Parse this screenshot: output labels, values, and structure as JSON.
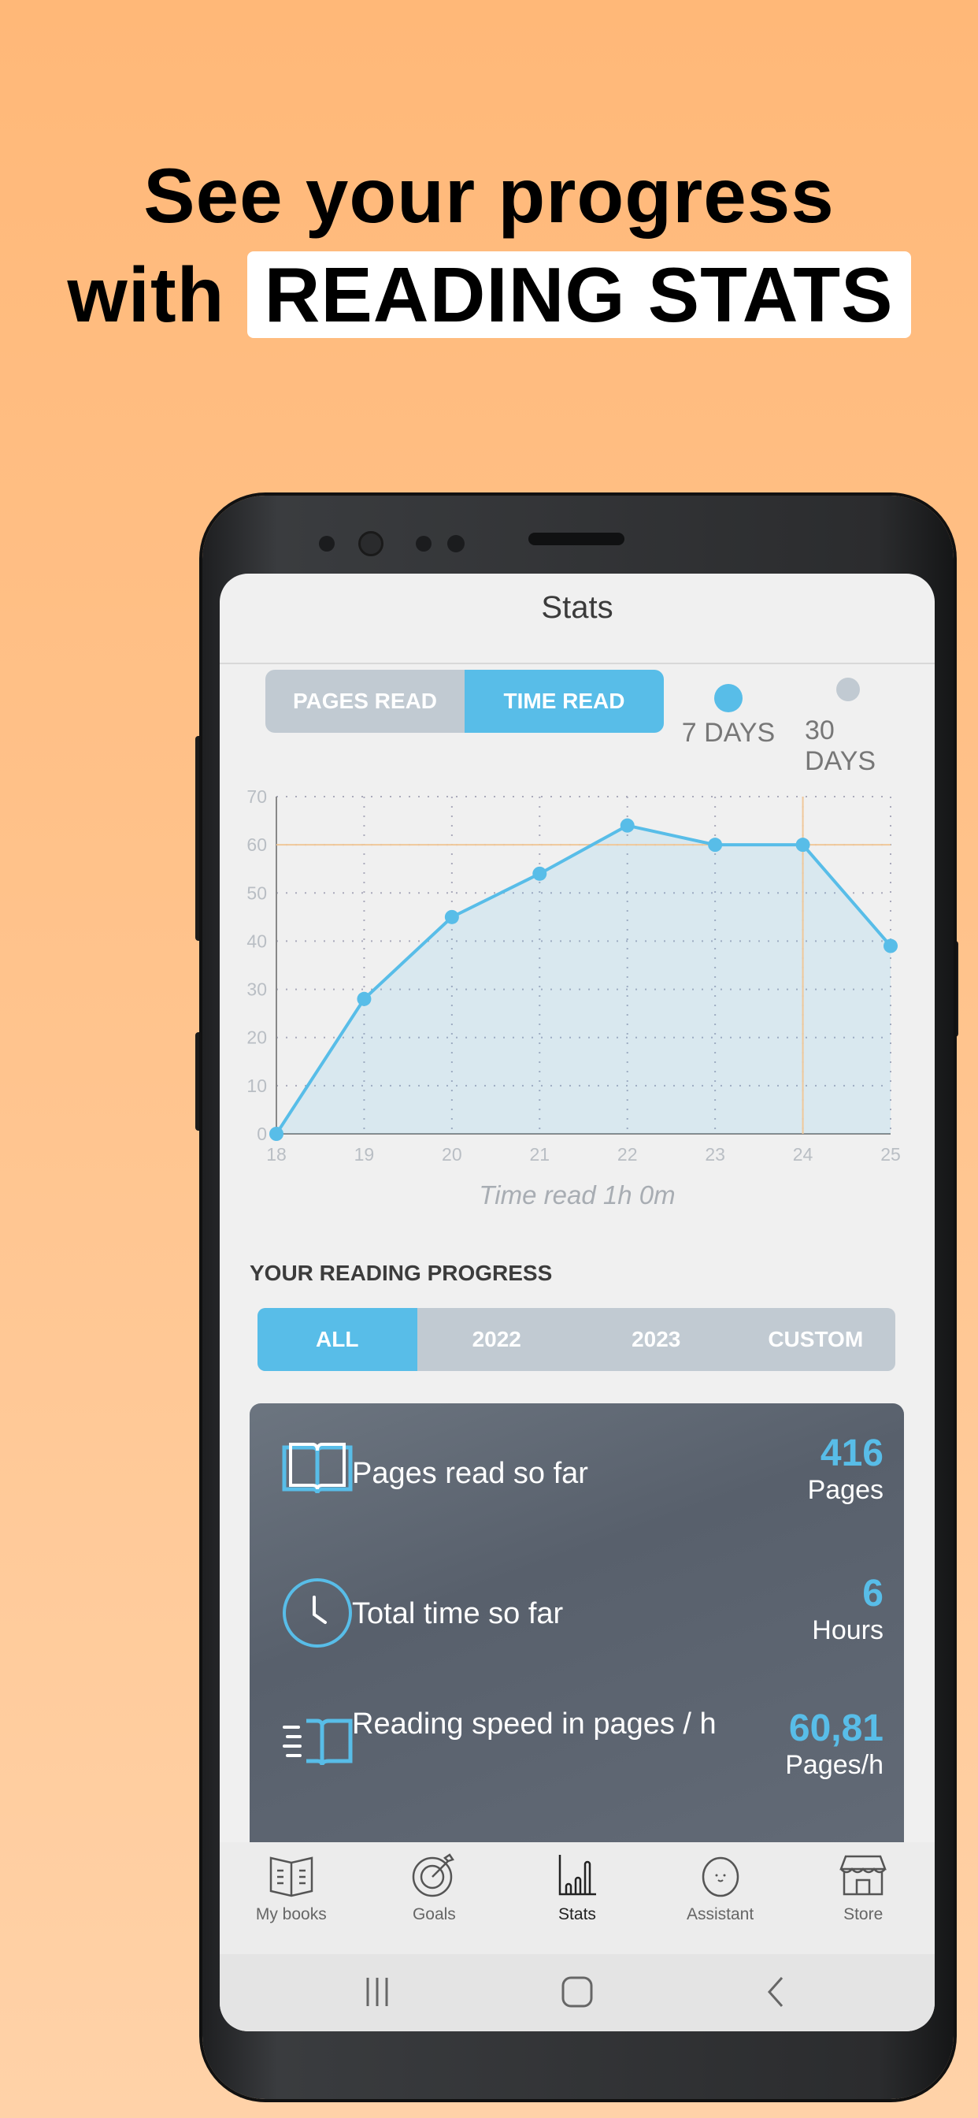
{
  "headline": {
    "line1": "See your progress",
    "line2_prefix": "with",
    "line2_highlight": "READING STATS"
  },
  "app": {
    "title": "Stats",
    "metric_toggle": [
      {
        "label": "PAGES READ",
        "active": false
      },
      {
        "label": "TIME READ",
        "active": true
      }
    ],
    "range": [
      {
        "label": "7 DAYS",
        "selected": true
      },
      {
        "label": "30 DAYS",
        "selected": false
      }
    ],
    "chart_caption": "Time read  1h  0m",
    "section_title": "YOUR READING PROGRESS",
    "period_tabs": [
      {
        "label": "ALL",
        "active": true
      },
      {
        "label": "2022",
        "active": false
      },
      {
        "label": "2023",
        "active": false
      },
      {
        "label": "CUSTOM",
        "active": false
      }
    ],
    "stats": [
      {
        "icon": "open-book-icon",
        "label": "Pages read so far",
        "value": "416",
        "unit": "Pages"
      },
      {
        "icon": "clock-icon",
        "label": "Total time so far",
        "value": "6",
        "unit": "Hours"
      },
      {
        "icon": "reading-speed-book-icon",
        "label": "Reading speed in pages / h",
        "value": "60,81",
        "unit": "Pages/h"
      }
    ],
    "tabbar": [
      {
        "label": "My books",
        "icon": "book-icon",
        "active": false
      },
      {
        "label": "Goals",
        "icon": "target-icon",
        "active": false
      },
      {
        "label": "Stats",
        "icon": "bar-chart-icon",
        "active": true
      },
      {
        "label": "Assistant",
        "icon": "mascot-icon",
        "active": false
      },
      {
        "label": "Store",
        "icon": "store-icon",
        "active": false
      }
    ],
    "colors": {
      "accent": "#58bde8",
      "inactive": "#c1cad2",
      "card": "#5e6672",
      "reference_line": "#f0c89a"
    }
  },
  "chart_data": {
    "type": "area",
    "x": [
      18,
      19,
      20,
      21,
      22,
      23,
      24,
      25
    ],
    "values": [
      0,
      28,
      45,
      54,
      64,
      60,
      60,
      39
    ],
    "xlim": [
      18,
      25
    ],
    "ylim": [
      0,
      70
    ],
    "yticks": [
      0,
      10,
      20,
      30,
      40,
      50,
      60,
      70
    ],
    "grid": true,
    "reference_lines": {
      "y": 60,
      "x": 24
    },
    "color": "#58bde8"
  }
}
